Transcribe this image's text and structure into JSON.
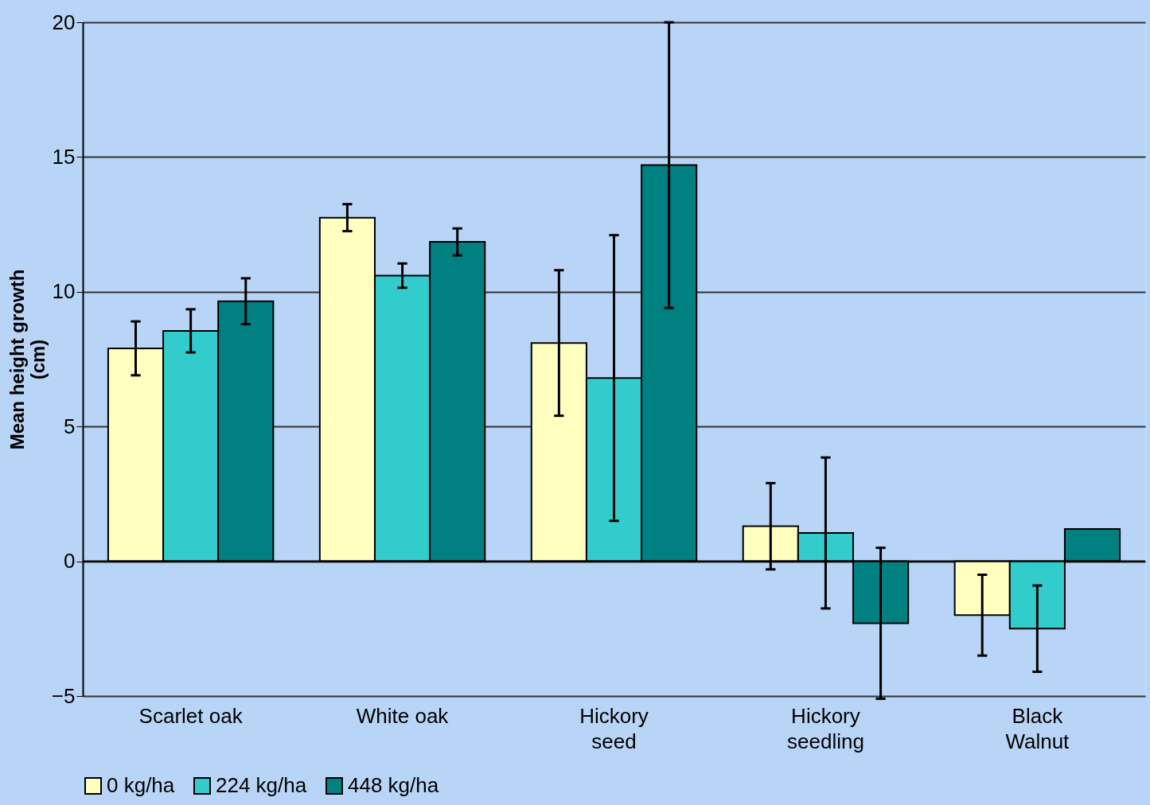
{
  "chart_data": {
    "type": "bar",
    "ylabel": "Mean height growth (cm)",
    "categories": [
      "Scarlet oak",
      "White oak",
      "Hickory seed",
      "Hickory seedling",
      "Black Walnut"
    ],
    "series": [
      {
        "name": "0 kg/ha",
        "color": "#ffffc0",
        "values": [
          7.9,
          12.75,
          8.1,
          1.3,
          -2.0
        ],
        "errors": [
          1.0,
          0.5,
          2.7,
          1.6,
          1.5
        ]
      },
      {
        "name": "224 kg/ha",
        "color": "#33cccc",
        "values": [
          8.55,
          10.6,
          6.8,
          1.05,
          -2.5
        ],
        "errors": [
          0.8,
          0.45,
          5.3,
          2.8,
          1.6
        ]
      },
      {
        "name": "448 kg/ha",
        "color": "#008080",
        "values": [
          9.65,
          11.85,
          14.7,
          -2.3,
          1.2
        ],
        "errors": [
          0.85,
          0.5,
          5.3,
          2.8,
          null
        ]
      }
    ],
    "ylim": [
      -5,
      20
    ],
    "yticks": [
      -5,
      0,
      5,
      10,
      15,
      20
    ],
    "grid": "y",
    "legend": "bottom"
  }
}
